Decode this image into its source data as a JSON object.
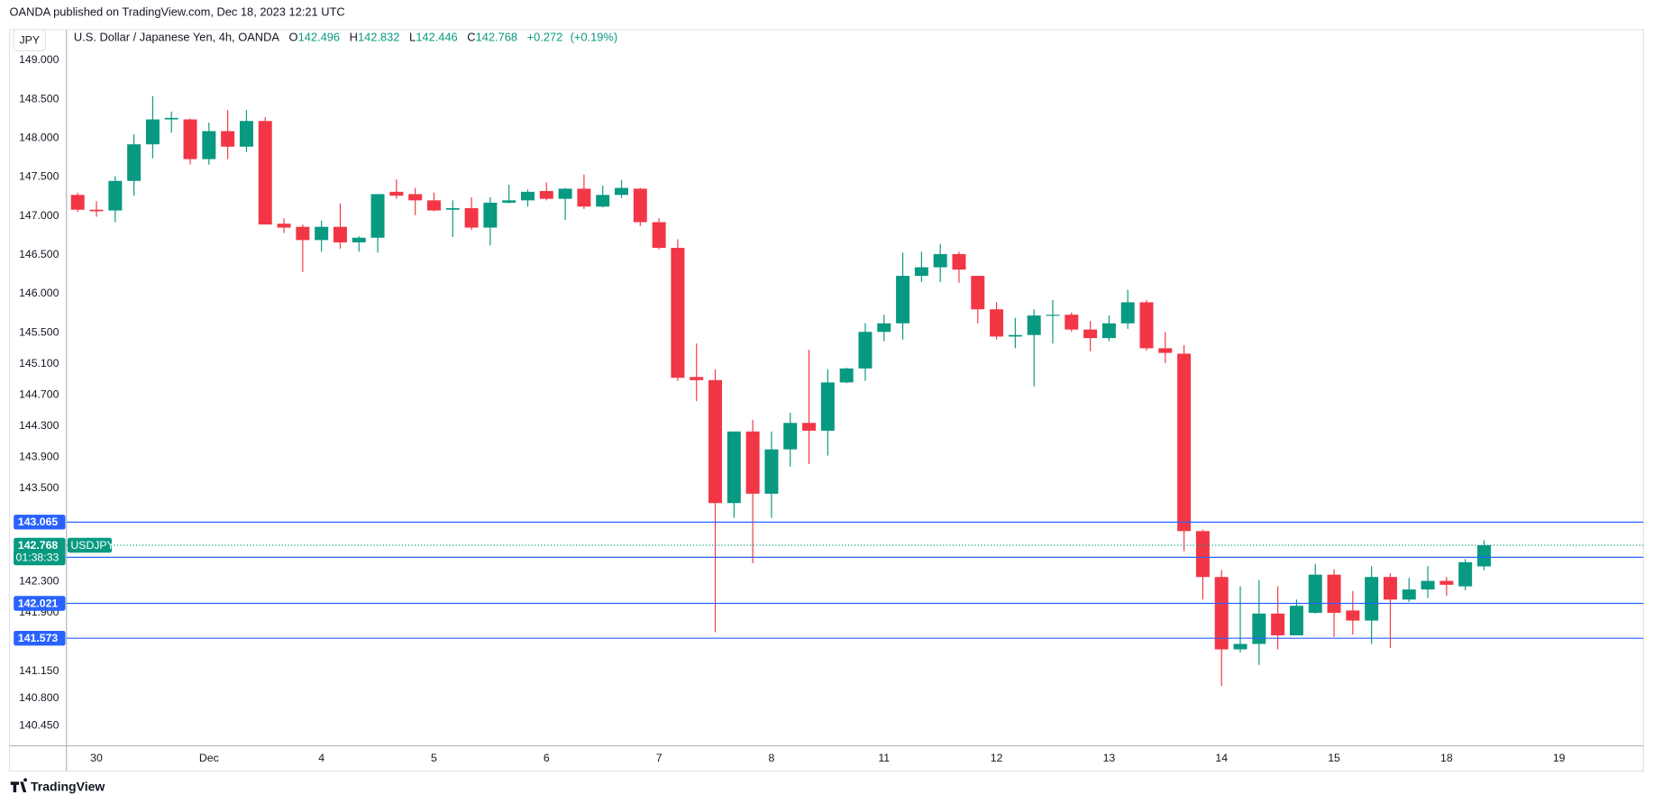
{
  "header": "OANDA published on TradingView.com, Dec 18, 2023 12:21 UTC",
  "footer": "TradingView",
  "chart_data": {
    "type": "candlestick",
    "title": "U.S. Dollar / Japanese Yen, 4h, OANDA",
    "symbol": "USDJPY",
    "currency": "JPY",
    "legend_letters": [
      "O",
      "H",
      "L",
      "C"
    ],
    "change": "+0.272",
    "change_pct": "(+0.19%)",
    "countdown": "01:38:33",
    "up_color": "#089981",
    "down_color": "#f23645",
    "level_color": "#2962ff",
    "grid": false,
    "open": [
      147.27,
      147.08,
      147.07,
      147.45,
      147.92,
      148.24,
      148.24,
      147.73,
      148.09,
      147.89,
      148.22,
      146.9,
      146.86,
      146.69,
      146.86,
      146.66,
      146.72,
      147.31,
      147.28,
      147.2,
      147.08,
      147.1,
      146.85,
      147.17,
      147.2,
      147.32,
      147.22,
      147.35,
      147.12,
      147.27,
      147.35,
      146.92,
      146.59,
      144.93,
      144.89,
      143.31,
      144.23,
      143.43,
      144.0,
      144.34,
      144.24,
      144.86,
      145.04,
      145.51,
      145.62,
      146.23,
      146.34,
      146.51,
      146.23,
      145.8,
      145.45,
      145.47,
      145.72,
      145.73,
      145.54,
      145.43,
      145.62,
      145.89,
      145.3,
      145.23,
      142.95,
      142.36,
      141.43,
      141.5,
      141.89,
      141.61,
      141.9,
      142.39,
      141.93,
      141.8,
      142.36,
      142.07,
      142.2,
      142.31,
      142.24,
      142.496
    ],
    "high": [
      147.3,
      147.19,
      147.51,
      148.05,
      148.54,
      148.34,
      148.25,
      148.2,
      148.36,
      148.36,
      148.27,
      146.97,
      146.89,
      146.94,
      147.16,
      146.74,
      147.28,
      147.47,
      147.36,
      147.3,
      147.2,
      147.24,
      147.24,
      147.4,
      147.34,
      147.43,
      147.36,
      147.53,
      147.39,
      147.46,
      147.36,
      146.97,
      146.7,
      145.36,
      145.03,
      144.23,
      144.38,
      144.23,
      144.47,
      145.28,
      145.03,
      145.05,
      145.62,
      145.73,
      146.53,
      146.54,
      146.64,
      146.54,
      146.23,
      145.89,
      145.69,
      145.8,
      145.92,
      145.76,
      145.65,
      145.72,
      146.05,
      145.92,
      145.51,
      145.34,
      142.97,
      142.45,
      142.24,
      142.32,
      142.24,
      142.07,
      142.53,
      142.46,
      142.18,
      142.5,
      142.41,
      142.35,
      142.5,
      142.36,
      142.59,
      142.832
    ],
    "low": [
      147.05,
      146.99,
      146.92,
      147.26,
      147.74,
      148.07,
      147.66,
      147.66,
      147.73,
      147.82,
      146.89,
      146.78,
      146.28,
      146.54,
      146.58,
      146.54,
      146.53,
      147.22,
      147.01,
      147.06,
      146.73,
      146.82,
      146.62,
      147.16,
      147.12,
      147.2,
      146.95,
      147.09,
      147.11,
      147.23,
      146.87,
      146.57,
      144.88,
      144.62,
      141.65,
      143.12,
      142.54,
      143.12,
      143.78,
      143.81,
      143.92,
      144.85,
      144.88,
      145.39,
      145.41,
      146.15,
      146.15,
      146.14,
      145.62,
      145.41,
      145.3,
      144.81,
      145.36,
      145.51,
      145.26,
      145.39,
      145.55,
      145.27,
      145.11,
      142.69,
      142.07,
      140.96,
      141.39,
      141.23,
      141.43,
      141.61,
      141.89,
      141.59,
      141.62,
      141.5,
      141.45,
      142.04,
      142.09,
      142.12,
      142.19,
      142.446
    ],
    "close": [
      147.08,
      147.06,
      147.45,
      147.92,
      148.24,
      148.26,
      147.73,
      148.09,
      147.89,
      148.22,
      146.89,
      146.85,
      146.69,
      146.86,
      146.66,
      146.72,
      147.28,
      147.26,
      147.2,
      147.07,
      147.1,
      146.85,
      147.17,
      147.2,
      147.31,
      147.22,
      147.35,
      147.12,
      147.27,
      147.36,
      146.92,
      146.59,
      144.92,
      144.89,
      143.31,
      144.23,
      143.43,
      144.0,
      144.34,
      144.24,
      144.86,
      145.04,
      145.51,
      145.62,
      146.23,
      146.34,
      146.51,
      146.31,
      145.8,
      145.45,
      145.47,
      145.72,
      145.73,
      145.54,
      145.43,
      145.62,
      145.89,
      145.3,
      145.24,
      142.95,
      142.36,
      141.43,
      141.5,
      141.89,
      141.61,
      141.99,
      142.39,
      141.9,
      141.8,
      142.36,
      142.07,
      142.2,
      142.31,
      142.26,
      142.55,
      142.768
    ],
    "levels": [
      143.065,
      142.613,
      142.021,
      141.573
    ],
    "ylim": [
      140.19,
      149.393
    ],
    "yticks": [
      {
        "value": 149,
        "label": "149.000"
      },
      {
        "value": 148.5,
        "label": "148.500"
      },
      {
        "value": 148,
        "label": "148.000"
      },
      {
        "value": 147.5,
        "label": "147.500"
      },
      {
        "value": 147,
        "label": "147.000"
      },
      {
        "value": 146.5,
        "label": "146.500"
      },
      {
        "value": 146,
        "label": "146.000"
      },
      {
        "value": 145.5,
        "label": "145.500"
      },
      {
        "value": 145.1,
        "label": "145.100"
      },
      {
        "value": 144.7,
        "label": "144.700"
      },
      {
        "value": 144.3,
        "label": "144.300"
      },
      {
        "value": 143.9,
        "label": "143.900"
      },
      {
        "value": 143.5,
        "label": "143.500"
      },
      {
        "value": 142.3,
        "label": "142.300"
      },
      {
        "value": 141.9,
        "label": "141.900"
      },
      {
        "value": 141.15,
        "label": "141.150"
      },
      {
        "value": 140.8,
        "label": "140.800"
      },
      {
        "value": 140.45,
        "label": "140.450"
      }
    ],
    "xlim": [
      -0.6,
      83.5
    ],
    "xticks": [
      {
        "value": 1,
        "label": "30"
      },
      {
        "value": 7,
        "label": "Dec"
      },
      {
        "value": 13,
        "label": "4"
      },
      {
        "value": 19,
        "label": "5"
      },
      {
        "value": 25,
        "label": "6"
      },
      {
        "value": 31,
        "label": "7"
      },
      {
        "value": 37,
        "label": "8"
      },
      {
        "value": 43,
        "label": "11"
      },
      {
        "value": 49,
        "label": "12"
      },
      {
        "value": 55,
        "label": "13"
      },
      {
        "value": 61,
        "label": "14"
      },
      {
        "value": 67,
        "label": "15"
      },
      {
        "value": 73,
        "label": "18"
      },
      {
        "value": 79,
        "label": "19"
      }
    ]
  }
}
